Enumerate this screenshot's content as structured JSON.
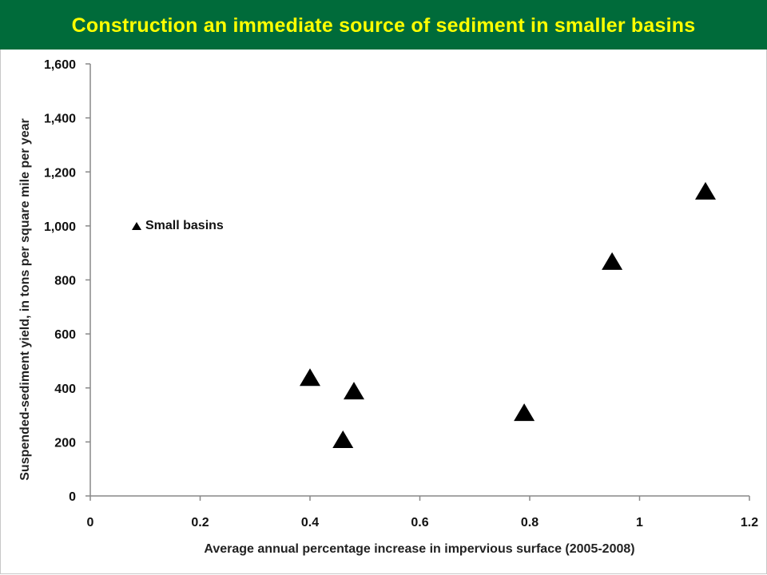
{
  "header": {
    "title": "Construction an immediate source of sediment in smaller basins",
    "background": "#006b3a",
    "title_color": "#ffff00"
  },
  "chart_data": {
    "type": "scatter",
    "title": "",
    "xlabel": "Average annual percentage increase in impervious surface (2005-2008)",
    "ylabel": "Suspended-sediment yield, in tons per square mile per year",
    "xlim": [
      0,
      1.2
    ],
    "ylim": [
      0,
      1600
    ],
    "x_ticks": [
      0,
      0.2,
      0.4,
      0.6,
      0.8,
      1,
      1.2
    ],
    "x_tick_labels": [
      "0",
      "0.2",
      "0.4",
      "0.6",
      "0.8",
      "1",
      "1.2"
    ],
    "y_ticks": [
      0,
      200,
      400,
      600,
      800,
      1000,
      1200,
      1400,
      1600
    ],
    "y_tick_labels": [
      "0",
      "200",
      "400",
      "600",
      "800",
      "1,000",
      "1,200",
      "1,400",
      "1,600"
    ],
    "grid": false,
    "legend_position": "top-left",
    "marker": "triangle-icon",
    "marker_color": "#000000",
    "series": [
      {
        "name": "Small basins",
        "points": [
          {
            "x": 0.4,
            "y": 440
          },
          {
            "x": 0.48,
            "y": 390
          },
          {
            "x": 0.46,
            "y": 210
          },
          {
            "x": 0.79,
            "y": 310
          },
          {
            "x": 0.95,
            "y": 870
          },
          {
            "x": 1.12,
            "y": 1130
          }
        ]
      }
    ]
  }
}
